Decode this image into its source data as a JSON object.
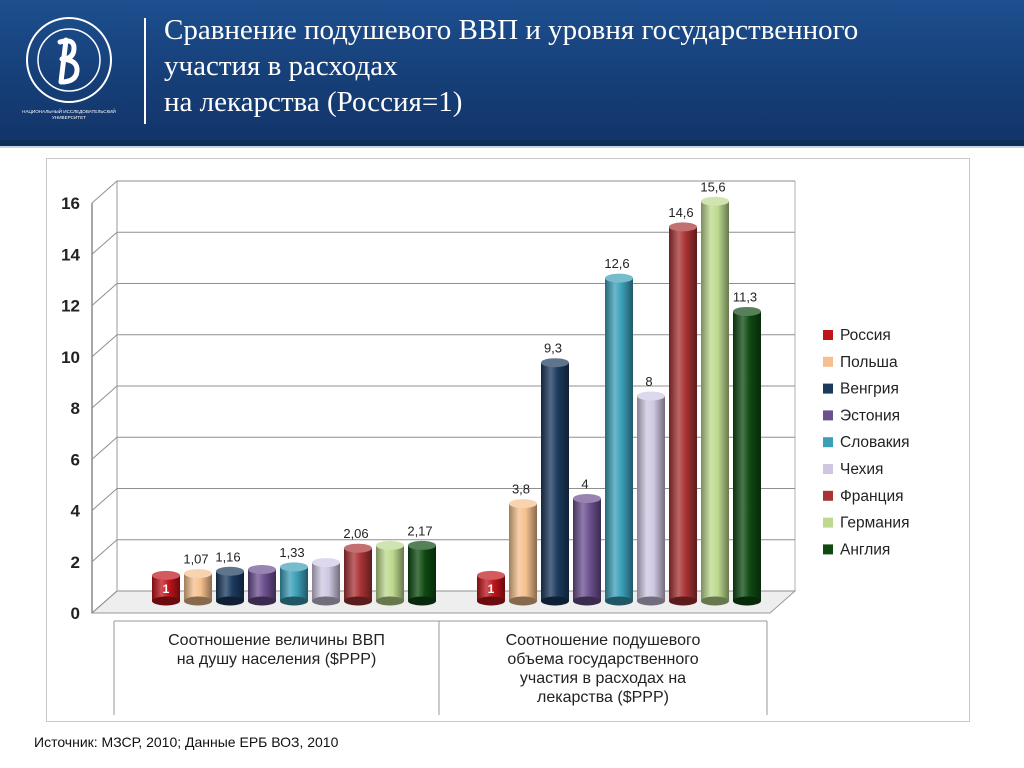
{
  "header": {
    "title_lines": [
      "Сравнение  подушевого ВВП и уровня государственного",
      "участия в расходах",
      "на лекарства (Россия=1)"
    ],
    "logo_caption_1": "НАЦИОНАЛЬНЫЙ ИССЛЕДОВАТЕЛЬСКИЙ",
    "logo_caption_2": "УНИВЕРСИТЕТ"
  },
  "source": "Источник: МЗСР, 2010; Данные ЕРБ ВОЗ, 2010",
  "chart_data": {
    "type": "bar",
    "style": "3d-cylinder",
    "ylim": [
      0,
      16
    ],
    "yticks": [
      0,
      2,
      4,
      6,
      8,
      10,
      12,
      14,
      16
    ],
    "grid": true,
    "legend_position": "right",
    "groups": [
      {
        "label_lines": [
          "Соотношение величины ВВП",
          "на душу населения ($PPP)"
        ],
        "values": [
          1,
          1.07,
          1.16,
          1.23,
          1.33,
          1.5,
          2.06,
          2.17,
          2.17
        ],
        "labels": [
          "1",
          "1,07",
          "1,16",
          "",
          "1,33",
          "",
          "2,06",
          "",
          "2,17"
        ]
      },
      {
        "label_lines": [
          "Соотношение подушевого",
          "объема государственного",
          "участия в расходах на",
          "лекарства ($PPP)"
        ],
        "values": [
          1,
          3.8,
          9.3,
          4,
          12.6,
          8,
          14.6,
          15.6,
          11.3
        ],
        "labels": [
          "1",
          "3,8",
          "9,3",
          "4",
          "12,6",
          "8",
          "14,6",
          "15,6",
          "11,3"
        ]
      }
    ],
    "series": [
      {
        "name": "Россия",
        "color": "#c0141b"
      },
      {
        "name": "Польша",
        "color": "#f5c08e"
      },
      {
        "name": "Венгрия",
        "color": "#1b3a5e"
      },
      {
        "name": "Эстония",
        "color": "#6b4f8f"
      },
      {
        "name": "Словакия",
        "color": "#3b9fb8"
      },
      {
        "name": "Чехия",
        "color": "#cfc7e2"
      },
      {
        "name": "Франция",
        "color": "#a83234"
      },
      {
        "name": "Германия",
        "color": "#bcd98e"
      },
      {
        "name": "Англия",
        "color": "#0e4a12"
      }
    ]
  }
}
